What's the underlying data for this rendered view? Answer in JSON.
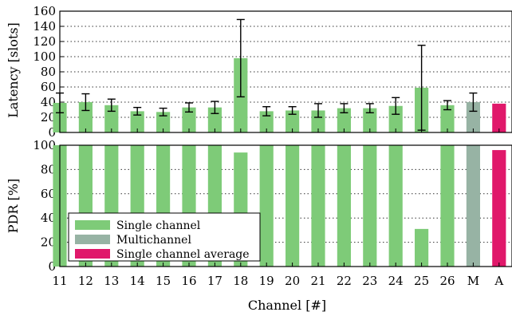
{
  "chart_data": [
    {
      "type": "bar",
      "panel": "top",
      "ylabel": "Latency [slots]",
      "ylim": [
        0,
        160
      ],
      "yticks": [
        0,
        20,
        40,
        60,
        80,
        100,
        120,
        140,
        160
      ],
      "grid": true,
      "categories": [
        "11",
        "12",
        "13",
        "14",
        "15",
        "16",
        "17",
        "18",
        "19",
        "20",
        "21",
        "22",
        "23",
        "24",
        "25",
        "26",
        "M",
        "A"
      ],
      "series": [
        {
          "name": "Single channel",
          "values": [
            39,
            40,
            36,
            28,
            27,
            33,
            33,
            98,
            28,
            29,
            29,
            32,
            32,
            35,
            59,
            36,
            null,
            null
          ],
          "error": [
            13,
            11,
            8,
            5,
            5,
            6,
            8,
            51,
            6,
            5,
            9,
            6,
            6,
            11,
            56,
            6,
            null,
            null
          ],
          "color": "#7ecb78"
        },
        {
          "name": "Multichannel",
          "values": [
            null,
            null,
            null,
            null,
            null,
            null,
            null,
            null,
            null,
            null,
            null,
            null,
            null,
            null,
            null,
            null,
            40,
            null
          ],
          "error": [
            null,
            null,
            null,
            null,
            null,
            null,
            null,
            null,
            null,
            null,
            null,
            null,
            null,
            null,
            null,
            null,
            12,
            null
          ],
          "color": "#97b3a4"
        },
        {
          "name": "Single channel average",
          "values": [
            null,
            null,
            null,
            null,
            null,
            null,
            null,
            null,
            null,
            null,
            null,
            null,
            null,
            null,
            null,
            null,
            null,
            38
          ],
          "error": [
            null,
            null,
            null,
            null,
            null,
            null,
            null,
            null,
            null,
            null,
            null,
            null,
            null,
            null,
            null,
            null,
            null,
            null
          ],
          "color": "#e0186a"
        }
      ]
    },
    {
      "type": "bar",
      "panel": "bottom",
      "ylabel": "PDR [%]",
      "xlabel": "Channel [#]",
      "ylim": [
        0,
        100
      ],
      "yticks": [
        0,
        20,
        40,
        60,
        80,
        100
      ],
      "grid": true,
      "legend_position": "bottom-left",
      "categories": [
        "11",
        "12",
        "13",
        "14",
        "15",
        "16",
        "17",
        "18",
        "19",
        "20",
        "21",
        "22",
        "23",
        "24",
        "25",
        "26",
        "M",
        "A"
      ],
      "series": [
        {
          "name": "Single channel",
          "values": [
            100,
            100,
            100,
            100,
            100,
            100,
            100,
            94,
            100,
            100,
            100,
            100,
            100,
            100,
            31,
            100,
            null,
            null
          ],
          "color": "#7ecb78"
        },
        {
          "name": "Multichannel",
          "values": [
            null,
            null,
            null,
            null,
            null,
            null,
            null,
            null,
            null,
            null,
            null,
            null,
            null,
            null,
            null,
            null,
            100,
            null
          ],
          "color": "#97b3a4"
        },
        {
          "name": "Single channel average",
          "values": [
            null,
            null,
            null,
            null,
            null,
            null,
            null,
            null,
            null,
            null,
            null,
            null,
            null,
            null,
            null,
            null,
            null,
            96
          ],
          "color": "#e0186a"
        }
      ]
    }
  ],
  "legend": [
    {
      "label": "Single channel",
      "color": "#7ecb78"
    },
    {
      "label": "Multichannel",
      "color": "#97b3a4"
    },
    {
      "label": "Single channel average",
      "color": "#e0186a"
    }
  ]
}
